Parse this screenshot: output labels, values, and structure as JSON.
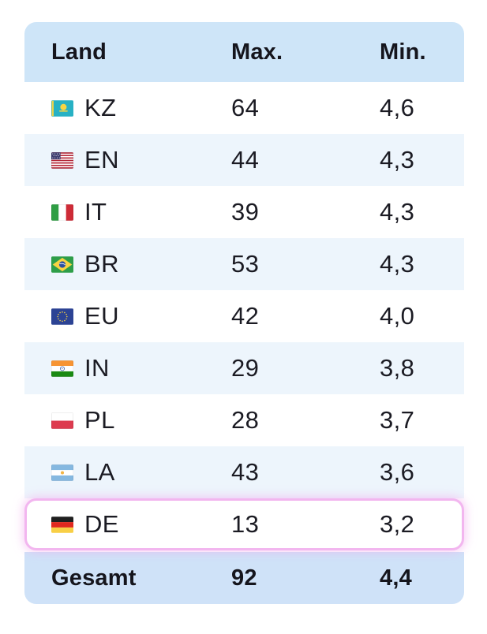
{
  "colors": {
    "header_bg": "#cee5f8",
    "row_bg": "#ffffff",
    "row_alt_bg": "#edf5fc",
    "total_bg": "#cfe2f8",
    "highlight_border": "#f2b6ef",
    "text": "#15151d"
  },
  "table": {
    "columns": [
      {
        "label": "Land"
      },
      {
        "label": "Max."
      },
      {
        "label": "Min."
      }
    ],
    "rows": [
      {
        "flag_icon": "kz-flag-icon",
        "code": "KZ",
        "max": "64",
        "min": "4,6",
        "highlighted": false
      },
      {
        "flag_icon": "us-flag-icon",
        "code": "EN",
        "max": "44",
        "min": "4,3",
        "highlighted": false
      },
      {
        "flag_icon": "it-flag-icon",
        "code": "IT",
        "max": "39",
        "min": "4,3",
        "highlighted": false
      },
      {
        "flag_icon": "br-flag-icon",
        "code": "BR",
        "max": "53",
        "min": "4,3",
        "highlighted": false
      },
      {
        "flag_icon": "eu-flag-icon",
        "code": "EU",
        "max": "42",
        "min": "4,0",
        "highlighted": false
      },
      {
        "flag_icon": "in-flag-icon",
        "code": "IN",
        "max": "29",
        "min": "3,8",
        "highlighted": false
      },
      {
        "flag_icon": "pl-flag-icon",
        "code": "PL",
        "max": "28",
        "min": "3,7",
        "highlighted": false
      },
      {
        "flag_icon": "ar-flag-icon",
        "code": "LA",
        "max": "43",
        "min": "3,6",
        "highlighted": false
      },
      {
        "flag_icon": "de-flag-icon",
        "code": "DE",
        "max": "13",
        "min": "3,2",
        "highlighted": true
      }
    ],
    "total_row": {
      "label": "Gesamt",
      "max": "92",
      "min": "4,4"
    }
  }
}
